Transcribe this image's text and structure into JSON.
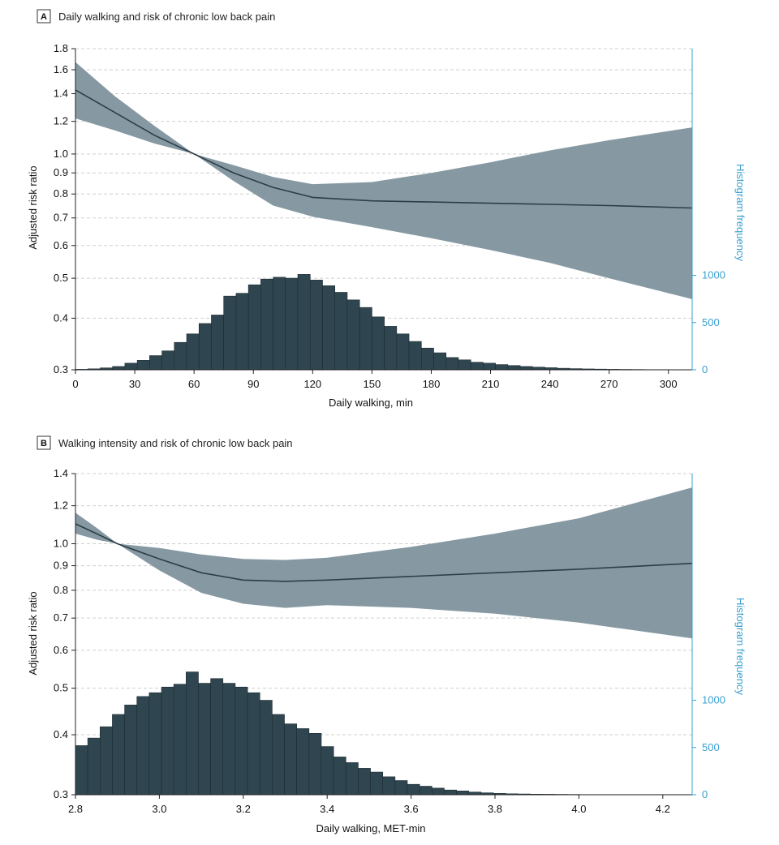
{
  "colors": {
    "band": "#7f939e",
    "line": "#2c3e45",
    "bar": "#2f4650",
    "grid": "#cfcfcf",
    "hist_axis": "#3aa0d0"
  },
  "chart_data": [
    {
      "type": "line",
      "panel_letter": "A",
      "title": "Daily walking and risk of chronic low back pain",
      "xlabel": "Daily walking, min",
      "ylabel": "Adjusted risk ratio",
      "y2label": "Histogram frequency",
      "xlim": [
        0,
        312
      ],
      "ylim": [
        0.3,
        1.8
      ],
      "yscale": "log",
      "y2lim": [
        0,
        3400
      ],
      "x_ticks": [
        0,
        30,
        60,
        90,
        120,
        150,
        180,
        210,
        240,
        270,
        300
      ],
      "x_tick_labels": [
        "0",
        "30",
        "60",
        "90",
        "120",
        "150",
        "180",
        "210",
        "240",
        "270",
        "300"
      ],
      "y_ticks": [
        0.3,
        0.4,
        0.5,
        0.6,
        0.7,
        0.8,
        0.9,
        1.0,
        1.2,
        1.4,
        1.6,
        1.8
      ],
      "y_tick_labels": [
        "0.3",
        "0.4",
        "0.5",
        "0.6",
        "0.7",
        "0.8",
        "0.9",
        "1.0",
        "1.2",
        "1.4",
        "1.6",
        "1.8"
      ],
      "y2_ticks": [
        0,
        500,
        1000
      ],
      "y2_tick_labels": [
        "0",
        "500",
        "1000"
      ],
      "grid": true,
      "series": [
        {
          "name": "Adjusted risk ratio",
          "x": [
            0,
            20,
            40,
            60,
            80,
            100,
            120,
            150,
            180,
            210,
            240,
            270,
            312
          ],
          "values": [
            1.43,
            1.26,
            1.11,
            1.0,
            0.9,
            0.83,
            0.785,
            0.77,
            0.765,
            0.76,
            0.755,
            0.75,
            0.74
          ]
        },
        {
          "name": "Lower 95% CI",
          "x": [
            0,
            20,
            40,
            60,
            80,
            100,
            120,
            150,
            180,
            210,
            240,
            270,
            312
          ],
          "values": [
            1.22,
            1.14,
            1.06,
            1.0,
            0.86,
            0.75,
            0.705,
            0.665,
            0.625,
            0.585,
            0.545,
            0.5,
            0.445
          ]
        },
        {
          "name": "Upper 95% CI",
          "x": [
            0,
            20,
            40,
            60,
            80,
            100,
            120,
            150,
            180,
            210,
            240,
            270,
            312
          ],
          "values": [
            1.67,
            1.38,
            1.17,
            1.0,
            0.94,
            0.88,
            0.845,
            0.855,
            0.9,
            0.955,
            1.02,
            1.08,
            1.16
          ]
        }
      ],
      "histogram": {
        "bin_start": 0,
        "bin_width": 6.25,
        "counts": [
          5,
          10,
          20,
          35,
          70,
          100,
          150,
          200,
          290,
          380,
          490,
          580,
          780,
          810,
          900,
          960,
          980,
          970,
          1010,
          950,
          890,
          820,
          740,
          660,
          560,
          460,
          380,
          300,
          230,
          180,
          130,
          105,
          80,
          70,
          55,
          45,
          35,
          28,
          22,
          16,
          12,
          9,
          7,
          5,
          4,
          3,
          2,
          2,
          1,
          1
        ]
      }
    },
    {
      "type": "line",
      "panel_letter": "B",
      "title": "Walking intensity and risk of chronic low back pain",
      "xlabel": "Daily walking, MET-min",
      "ylabel": "Adjusted risk ratio",
      "y2label": "Histogram frequency",
      "xlim": [
        2.8,
        4.27
      ],
      "ylim": [
        0.3,
        1.4
      ],
      "yscale": "log",
      "y2lim": [
        0,
        3400
      ],
      "x_ticks": [
        2.8,
        3.0,
        3.2,
        3.4,
        3.6,
        3.8,
        4.0,
        4.2
      ],
      "x_tick_labels": [
        "2.8",
        "3.0",
        "3.2",
        "3.4",
        "3.6",
        "3.8",
        "4.0",
        "4.2"
      ],
      "y_ticks": [
        0.3,
        0.4,
        0.5,
        0.6,
        0.7,
        0.8,
        0.9,
        1.0,
        1.2,
        1.4
      ],
      "y_tick_labels": [
        "0.3",
        "0.4",
        "0.5",
        "0.6",
        "0.7",
        "0.8",
        "0.9",
        "1.0",
        "1.2",
        "1.4"
      ],
      "y2_ticks": [
        0,
        500,
        1000
      ],
      "y2_tick_labels": [
        "0",
        "500",
        "1000"
      ],
      "grid": true,
      "series": [
        {
          "name": "Adjusted risk ratio",
          "x": [
            2.8,
            2.85,
            2.9,
            3.0,
            3.1,
            3.2,
            3.3,
            3.4,
            3.6,
            3.8,
            4.0,
            4.27
          ],
          "values": [
            1.1,
            1.05,
            1.0,
            0.93,
            0.87,
            0.84,
            0.835,
            0.84,
            0.855,
            0.87,
            0.885,
            0.91
          ]
        },
        {
          "name": "Lower 95% CI",
          "x": [
            2.8,
            2.85,
            2.9,
            3.0,
            3.1,
            3.2,
            3.3,
            3.4,
            3.6,
            3.8,
            4.0,
            4.27
          ],
          "values": [
            1.05,
            1.02,
            1.0,
            0.88,
            0.79,
            0.75,
            0.735,
            0.745,
            0.735,
            0.715,
            0.685,
            0.635
          ]
        },
        {
          "name": "Upper 95% CI",
          "x": [
            2.8,
            2.85,
            2.9,
            3.0,
            3.1,
            3.2,
            3.3,
            3.4,
            3.6,
            3.8,
            4.0,
            4.27
          ],
          "values": [
            1.16,
            1.08,
            1.0,
            0.98,
            0.95,
            0.93,
            0.925,
            0.935,
            0.985,
            1.05,
            1.13,
            1.31
          ]
        }
      ],
      "histogram": {
        "bin_start": 2.8,
        "bin_width": 0.0293,
        "counts": [
          520,
          600,
          720,
          850,
          950,
          1040,
          1080,
          1140,
          1170,
          1300,
          1180,
          1230,
          1180,
          1140,
          1080,
          1000,
          850,
          750,
          700,
          650,
          510,
          400,
          340,
          280,
          240,
          190,
          150,
          110,
          90,
          70,
          50,
          40,
          28,
          20,
          14,
          10,
          8,
          6,
          5,
          4,
          3,
          2,
          2,
          2,
          2,
          2,
          2,
          2,
          2,
          2
        ]
      }
    }
  ]
}
